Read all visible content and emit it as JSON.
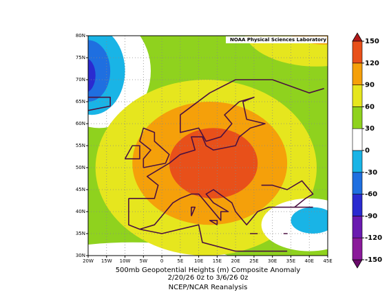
{
  "map": {
    "credit": "NOAA Physical Sciences Laboratory",
    "caption": [
      "500mb Geopotential Heights (m)   Composite Anomaly",
      "2/20/26 0z  to 3/6/26 0z",
      "NCEP/NCAR Reanalysis"
    ],
    "lat_ticks": [
      {
        "value": 30,
        "label": "30N"
      },
      {
        "value": 35,
        "label": "35N"
      },
      {
        "value": 40,
        "label": "40N"
      },
      {
        "value": 45,
        "label": "45N"
      },
      {
        "value": 50,
        "label": "50N"
      },
      {
        "value": 55,
        "label": "55N"
      },
      {
        "value": 60,
        "label": "60N"
      },
      {
        "value": 65,
        "label": "65N"
      },
      {
        "value": 70,
        "label": "70N"
      },
      {
        "value": 75,
        "label": "75N"
      },
      {
        "value": 80,
        "label": "80N"
      }
    ],
    "lon_ticks": [
      {
        "value": -20,
        "label": "20W"
      },
      {
        "value": -15,
        "label": "15W"
      },
      {
        "value": -10,
        "label": "10W"
      },
      {
        "value": -5,
        "label": "5W"
      },
      0,
      {
        "value": 5,
        "label": "5E"
      },
      {
        "value": 10,
        "label": "10E"
      },
      {
        "value": 15,
        "label": "15E"
      },
      {
        "value": 20,
        "label": "20E"
      },
      {
        "value": 25,
        "label": "25E"
      },
      {
        "value": 30,
        "label": "30E"
      },
      {
        "value": 35,
        "label": "35E"
      },
      {
        "value": 40,
        "label": "40E"
      },
      {
        "value": 45,
        "label": "45E"
      }
    ],
    "colorbar": {
      "ticks": [
        -150,
        -120,
        -90,
        -60,
        -30,
        0,
        30,
        60,
        90,
        120,
        150
      ],
      "colors": [
        "#6a0a6a",
        "#8a1a9a",
        "#6a1ab0",
        "#2a2ad0",
        "#1f6fe0",
        "#19b4e6",
        "#ffffff",
        "#8fd21e",
        "#e6e61e",
        "#f5a00a",
        "#e8501a",
        "#b01818"
      ]
    }
  }
}
